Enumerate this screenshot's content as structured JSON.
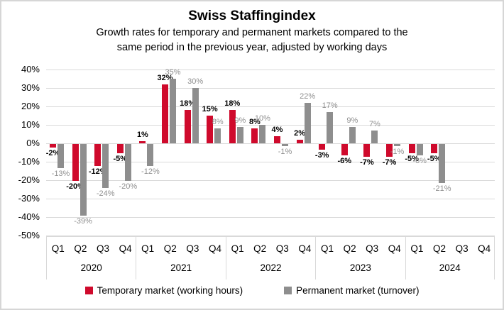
{
  "title": "Swiss Staffingindex",
  "subtitle": {
    "line1": "Growth rates for temporary and permanent markets compared to the",
    "line2": "same period in the previous year, adjusted by working days"
  },
  "colors": {
    "temporary": "#cf0a2c",
    "permanent": "#8e8e8e",
    "gridline": "#d9d9d9",
    "permanent_label": "#8f8f8f"
  },
  "chart_data": {
    "type": "bar",
    "years": [
      "2020",
      "2021",
      "2022",
      "2023",
      "2024"
    ],
    "quarters": [
      "Q1",
      "Q2",
      "Q3",
      "Q4"
    ],
    "categories": [
      "2020 Q1",
      "2020 Q2",
      "2020 Q3",
      "2020 Q4",
      "2021 Q1",
      "2021 Q2",
      "2021 Q3",
      "2021 Q4",
      "2022 Q1",
      "2022 Q2",
      "2022 Q3",
      "2022 Q4",
      "2023 Q1",
      "2023 Q2",
      "2023 Q3",
      "2023 Q4",
      "2024 Q1",
      "2024 Q2",
      "2024 Q3",
      "2024 Q4"
    ],
    "series": [
      {
        "name": "Temporary market (working hours)",
        "color": "#cf0a2c",
        "values": [
          -2,
          -20,
          -12,
          -5,
          1,
          32,
          18,
          15,
          18,
          8,
          4,
          2,
          -3,
          -6,
          -7,
          -7,
          -5,
          -5,
          null,
          null
        ]
      },
      {
        "name": "Permanent market (turnover)",
        "color": "#8e8e8e",
        "values": [
          -13,
          -39,
          -24,
          -20,
          -12,
          35,
          30,
          8,
          9,
          10,
          -1,
          22,
          17,
          9,
          7,
          -1,
          -6,
          -21,
          null,
          null
        ]
      }
    ],
    "title": "Swiss Staffingindex",
    "xlabel": "",
    "ylabel": "",
    "ylim": [
      -50,
      40
    ],
    "ytick_step": 10,
    "ytick_labels": [
      "40%",
      "30%",
      "20%",
      "10%",
      "0%",
      "-10%",
      "-20%",
      "-30%",
      "-40%",
      "-50%"
    ],
    "grid": true,
    "data_labels": true,
    "legend_position": "bottom"
  }
}
